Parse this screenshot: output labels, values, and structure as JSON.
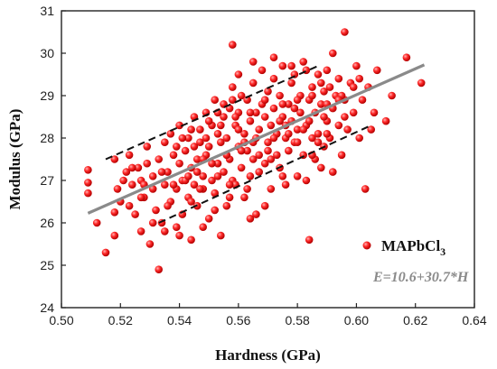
{
  "chart_data": {
    "type": "scatter",
    "xlabel": "Hardness (GPa)",
    "ylabel": "Modulus (GPa)",
    "xlim": [
      0.5,
      0.64
    ],
    "ylim": [
      24,
      31
    ],
    "x_ticks": [
      "0.50",
      "0.52",
      "0.54",
      "0.56",
      "0.58",
      "0.60",
      "0.62",
      "0.64"
    ],
    "y_ticks": [
      "24",
      "25",
      "26",
      "27",
      "28",
      "29",
      "30",
      "31"
    ],
    "legend": {
      "position": "bottom-right",
      "label": "MAPbCl",
      "subscript": "3"
    },
    "equation": {
      "text": "E=10.6+30.7*H"
    },
    "fit_line": {
      "intercept": 10.6,
      "slope": 30.7,
      "x_range": [
        0.509,
        0.623
      ],
      "color": "#8a8a8a"
    },
    "bounds": [
      {
        "x": [
          0.515,
          0.587
        ],
        "y": [
          27.5,
          29.7
        ]
      },
      {
        "x": [
          0.533,
          0.605
        ],
        "y": [
          26.0,
          28.3
        ]
      }
    ],
    "point_color": "#e8171a",
    "series": [
      {
        "name": "MAPbCl3",
        "points": [
          [
            0.509,
            27.25
          ],
          [
            0.509,
            26.95
          ],
          [
            0.509,
            26.7
          ],
          [
            0.512,
            26.0
          ],
          [
            0.515,
            25.3
          ],
          [
            0.518,
            25.7
          ],
          [
            0.518,
            26.25
          ],
          [
            0.518,
            27.5
          ],
          [
            0.519,
            26.8
          ],
          [
            0.521,
            27.0
          ],
          [
            0.522,
            27.2
          ],
          [
            0.523,
            26.4
          ],
          [
            0.523,
            27.6
          ],
          [
            0.524,
            26.9
          ],
          [
            0.525,
            26.2
          ],
          [
            0.526,
            27.3
          ],
          [
            0.527,
            25.8
          ],
          [
            0.527,
            27.0
          ],
          [
            0.528,
            26.6
          ],
          [
            0.529,
            27.8
          ],
          [
            0.529,
            27.4
          ],
          [
            0.53,
            25.5
          ],
          [
            0.531,
            26.8
          ],
          [
            0.531,
            27.1
          ],
          [
            0.532,
            26.3
          ],
          [
            0.533,
            24.9
          ],
          [
            0.533,
            27.5
          ],
          [
            0.534,
            26.0
          ],
          [
            0.535,
            27.9
          ],
          [
            0.535,
            26.9
          ],
          [
            0.536,
            27.2
          ],
          [
            0.537,
            26.5
          ],
          [
            0.537,
            28.1
          ],
          [
            0.538,
            27.6
          ],
          [
            0.539,
            25.9
          ],
          [
            0.539,
            26.8
          ],
          [
            0.54,
            27.4
          ],
          [
            0.54,
            28.3
          ],
          [
            0.541,
            26.2
          ],
          [
            0.541,
            27.0
          ],
          [
            0.542,
            27.7
          ],
          [
            0.543,
            26.6
          ],
          [
            0.543,
            28.0
          ],
          [
            0.544,
            25.6
          ],
          [
            0.544,
            27.3
          ],
          [
            0.545,
            26.9
          ],
          [
            0.545,
            28.5
          ],
          [
            0.546,
            27.5
          ],
          [
            0.546,
            26.4
          ],
          [
            0.547,
            27.9
          ],
          [
            0.547,
            28.2
          ],
          [
            0.548,
            26.8
          ],
          [
            0.548,
            27.1
          ],
          [
            0.549,
            28.6
          ],
          [
            0.549,
            27.6
          ],
          [
            0.55,
            26.1
          ],
          [
            0.55,
            27.8
          ],
          [
            0.551,
            28.3
          ],
          [
            0.551,
            27.0
          ],
          [
            0.552,
            28.9
          ],
          [
            0.552,
            26.7
          ],
          [
            0.553,
            27.4
          ],
          [
            0.553,
            28.1
          ],
          [
            0.554,
            25.7
          ],
          [
            0.554,
            27.9
          ],
          [
            0.555,
            28.5
          ],
          [
            0.555,
            27.2
          ],
          [
            0.556,
            26.4
          ],
          [
            0.556,
            28.0
          ],
          [
            0.557,
            28.7
          ],
          [
            0.557,
            27.5
          ],
          [
            0.558,
            29.2
          ],
          [
            0.558,
            27.0
          ],
          [
            0.559,
            28.3
          ],
          [
            0.559,
            26.9
          ],
          [
            0.56,
            27.8
          ],
          [
            0.56,
            28.6
          ],
          [
            0.561,
            27.3
          ],
          [
            0.561,
            29.0
          ],
          [
            0.562,
            28.1
          ],
          [
            0.562,
            26.6
          ],
          [
            0.563,
            27.7
          ],
          [
            0.563,
            28.9
          ],
          [
            0.564,
            28.4
          ],
          [
            0.564,
            27.1
          ],
          [
            0.565,
            29.3
          ],
          [
            0.565,
            27.9
          ],
          [
            0.566,
            28.6
          ],
          [
            0.566,
            26.2
          ],
          [
            0.567,
            28.2
          ],
          [
            0.567,
            27.6
          ],
          [
            0.568,
            29.6
          ],
          [
            0.568,
            28.8
          ],
          [
            0.569,
            27.4
          ],
          [
            0.569,
            28.5
          ],
          [
            0.57,
            29.1
          ],
          [
            0.57,
            27.9
          ],
          [
            0.571,
            28.3
          ],
          [
            0.571,
            26.8
          ],
          [
            0.572,
            29.4
          ],
          [
            0.572,
            28.7
          ],
          [
            0.573,
            27.6
          ],
          [
            0.573,
            28.1
          ],
          [
            0.574,
            29.0
          ],
          [
            0.574,
            27.3
          ],
          [
            0.575,
            28.5
          ],
          [
            0.575,
            29.7
          ],
          [
            0.576,
            28.0
          ],
          [
            0.576,
            26.9
          ],
          [
            0.577,
            28.8
          ],
          [
            0.577,
            27.7
          ],
          [
            0.578,
            29.3
          ],
          [
            0.578,
            28.4
          ],
          [
            0.579,
            27.9
          ],
          [
            0.579,
            29.5
          ],
          [
            0.58,
            28.2
          ],
          [
            0.58,
            27.1
          ],
          [
            0.581,
            29.0
          ],
          [
            0.581,
            28.6
          ],
          [
            0.582,
            27.6
          ],
          [
            0.582,
            29.8
          ],
          [
            0.583,
            28.3
          ],
          [
            0.583,
            27.0
          ],
          [
            0.584,
            25.6
          ],
          [
            0.584,
            28.9
          ],
          [
            0.585,
            28.0
          ],
          [
            0.585,
            29.2
          ],
          [
            0.586,
            27.5
          ],
          [
            0.586,
            28.6
          ],
          [
            0.587,
            29.5
          ],
          [
            0.587,
            28.1
          ],
          [
            0.588,
            27.3
          ],
          [
            0.588,
            28.8
          ],
          [
            0.589,
            29.1
          ],
          [
            0.589,
            27.8
          ],
          [
            0.59,
            28.4
          ],
          [
            0.59,
            29.6
          ],
          [
            0.591,
            28.0
          ],
          [
            0.592,
            28.7
          ],
          [
            0.592,
            27.2
          ],
          [
            0.593,
            29.0
          ],
          [
            0.594,
            28.3
          ],
          [
            0.594,
            29.4
          ],
          [
            0.595,
            27.6
          ],
          [
            0.596,
            28.9
          ],
          [
            0.596,
            30.5
          ],
          [
            0.597,
            28.2
          ],
          [
            0.598,
            29.3
          ],
          [
            0.599,
            28.6
          ],
          [
            0.6,
            29.7
          ],
          [
            0.601,
            28.0
          ],
          [
            0.602,
            28.9
          ],
          [
            0.603,
            26.8
          ],
          [
            0.604,
            29.2
          ],
          [
            0.605,
            28.2
          ],
          [
            0.607,
            29.6
          ],
          [
            0.61,
            28.4
          ],
          [
            0.612,
            29.0
          ],
          [
            0.617,
            29.9
          ],
          [
            0.622,
            29.3
          ],
          [
            0.553,
            28.6
          ],
          [
            0.558,
            28.9
          ],
          [
            0.546,
            27.2
          ],
          [
            0.561,
            27.7
          ],
          [
            0.566,
            28.0
          ],
          [
            0.571,
            27.5
          ],
          [
            0.576,
            28.3
          ],
          [
            0.569,
            26.4
          ],
          [
            0.563,
            26.8
          ],
          [
            0.552,
            26.3
          ],
          [
            0.557,
            26.6
          ],
          [
            0.548,
            25.9
          ],
          [
            0.544,
            26.5
          ],
          [
            0.538,
            26.9
          ],
          [
            0.542,
            27.0
          ],
          [
            0.575,
            27.1
          ],
          [
            0.58,
            27.9
          ],
          [
            0.585,
            27.6
          ],
          [
            0.59,
            28.8
          ],
          [
            0.595,
            29.0
          ],
          [
            0.56,
            29.5
          ],
          [
            0.565,
            29.8
          ],
          [
            0.572,
            29.9
          ],
          [
            0.578,
            29.7
          ],
          [
            0.583,
            29.6
          ],
          [
            0.588,
            29.3
          ],
          [
            0.556,
            27.6
          ],
          [
            0.551,
            27.4
          ],
          [
            0.547,
            26.8
          ],
          [
            0.541,
            28.0
          ],
          [
            0.536,
            26.4
          ],
          [
            0.531,
            26.0
          ],
          [
            0.527,
            26.6
          ],
          [
            0.524,
            27.3
          ],
          [
            0.52,
            26.5
          ],
          [
            0.534,
            27.2
          ],
          [
            0.539,
            27.8
          ],
          [
            0.544,
            28.2
          ],
          [
            0.549,
            28.0
          ],
          [
            0.554,
            28.3
          ],
          [
            0.559,
            28.5
          ],
          [
            0.564,
            28.6
          ],
          [
            0.569,
            28.9
          ],
          [
            0.574,
            28.4
          ],
          [
            0.579,
            28.7
          ],
          [
            0.584,
            28.4
          ],
          [
            0.589,
            28.5
          ],
          [
            0.594,
            28.9
          ],
          [
            0.599,
            29.2
          ],
          [
            0.562,
            27.9
          ],
          [
            0.567,
            27.2
          ],
          [
            0.572,
            28.0
          ],
          [
            0.577,
            28.1
          ],
          [
            0.582,
            28.2
          ],
          [
            0.587,
            27.9
          ],
          [
            0.591,
            29.2
          ],
          [
            0.557,
            26.9
          ],
          [
            0.553,
            27.1
          ],
          [
            0.548,
            27.5
          ],
          [
            0.543,
            27.1
          ],
          [
            0.545,
            27.8
          ],
          [
            0.55,
            28.4
          ],
          [
            0.555,
            28.8
          ],
          [
            0.56,
            28.2
          ],
          [
            0.565,
            27.5
          ],
          [
            0.57,
            27.7
          ],
          [
            0.575,
            28.8
          ],
          [
            0.58,
            28.9
          ],
          [
            0.585,
            29.0
          ],
          [
            0.59,
            28.1
          ],
          [
            0.596,
            28.5
          ],
          [
            0.601,
            29.4
          ],
          [
            0.606,
            28.6
          ],
          [
            0.592,
            30.0
          ],
          [
            0.558,
            30.2
          ],
          [
            0.54,
            25.7
          ],
          [
            0.528,
            26.9
          ],
          [
            0.535,
            25.8
          ],
          [
            0.564,
            26.1
          ]
        ]
      }
    ]
  }
}
